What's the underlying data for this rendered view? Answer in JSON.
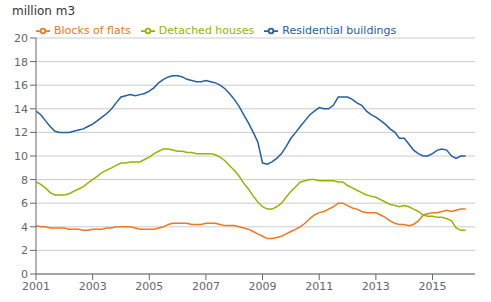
{
  "chart_data": {
    "type": "line",
    "title": "million m3",
    "x": [
      2001.0,
      2001.17,
      2001.33,
      2001.5,
      2001.67,
      2001.83,
      2002.0,
      2002.17,
      2002.33,
      2002.5,
      2002.67,
      2002.83,
      2003.0,
      2003.17,
      2003.33,
      2003.5,
      2003.67,
      2003.83,
      2004.0,
      2004.17,
      2004.33,
      2004.5,
      2004.67,
      2004.83,
      2005.0,
      2005.17,
      2005.33,
      2005.5,
      2005.67,
      2005.83,
      2006.0,
      2006.17,
      2006.33,
      2006.5,
      2006.67,
      2006.83,
      2007.0,
      2007.17,
      2007.33,
      2007.5,
      2007.67,
      2007.83,
      2008.0,
      2008.17,
      2008.33,
      2008.5,
      2008.67,
      2008.83,
      2009.0,
      2009.17,
      2009.33,
      2009.5,
      2009.67,
      2009.83,
      2010.0,
      2010.17,
      2010.33,
      2010.5,
      2010.67,
      2010.83,
      2011.0,
      2011.17,
      2011.33,
      2011.5,
      2011.67,
      2011.83,
      2012.0,
      2012.17,
      2012.33,
      2012.5,
      2012.67,
      2012.83,
      2013.0,
      2013.17,
      2013.33,
      2013.5,
      2013.67,
      2013.83,
      2014.0,
      2014.17,
      2014.33,
      2014.5,
      2014.67,
      2014.83,
      2015.0,
      2015.17,
      2015.33,
      2015.5,
      2015.67,
      2015.83,
      2016.0,
      2016.17
    ],
    "series": [
      {
        "name": "Residential buildings",
        "color": "#2060a8",
        "values": [
          13.8,
          13.5,
          13.0,
          12.5,
          12.1,
          12.0,
          12.0,
          12.0,
          12.1,
          12.2,
          12.3,
          12.5,
          12.7,
          13.0,
          13.3,
          13.6,
          14.0,
          14.5,
          15.0,
          15.1,
          15.2,
          15.1,
          15.2,
          15.3,
          15.5,
          15.8,
          16.2,
          16.5,
          16.7,
          16.8,
          16.8,
          16.7,
          16.5,
          16.4,
          16.3,
          16.3,
          16.4,
          16.3,
          16.2,
          16.0,
          15.7,
          15.3,
          14.8,
          14.2,
          13.5,
          12.8,
          12.0,
          11.2,
          9.4,
          9.3,
          9.5,
          9.8,
          10.2,
          10.8,
          11.5,
          12.0,
          12.5,
          13.0,
          13.5,
          13.8,
          14.1,
          14.0,
          14.0,
          14.3,
          15.0,
          15.0,
          15.0,
          14.8,
          14.5,
          14.3,
          13.8,
          13.5,
          13.3,
          13.0,
          12.7,
          12.3,
          12.0,
          11.5,
          11.5,
          11.0,
          10.5,
          10.2,
          10.0,
          10.0,
          10.2,
          10.5,
          10.6,
          10.5,
          10.0,
          9.8,
          10.0,
          10.0
        ]
      },
      {
        "name": "Blocks of flats",
        "color": "#f07820",
        "values": [
          4.1,
          4.0,
          4.0,
          3.9,
          3.9,
          3.9,
          3.9,
          3.8,
          3.8,
          3.8,
          3.7,
          3.7,
          3.8,
          3.8,
          3.8,
          3.9,
          3.9,
          4.0,
          4.0,
          4.0,
          4.0,
          3.9,
          3.8,
          3.8,
          3.8,
          3.8,
          3.9,
          4.0,
          4.2,
          4.3,
          4.3,
          4.3,
          4.3,
          4.2,
          4.2,
          4.2,
          4.3,
          4.3,
          4.3,
          4.2,
          4.1,
          4.1,
          4.1,
          4.0,
          3.9,
          3.8,
          3.6,
          3.4,
          3.2,
          3.0,
          3.0,
          3.1,
          3.2,
          3.4,
          3.6,
          3.8,
          4.0,
          4.3,
          4.7,
          5.0,
          5.2,
          5.3,
          5.5,
          5.7,
          6.0,
          6.0,
          5.8,
          5.6,
          5.5,
          5.3,
          5.2,
          5.2,
          5.2,
          5.0,
          4.8,
          4.5,
          4.3,
          4.2,
          4.2,
          4.1,
          4.2,
          4.5,
          5.0,
          5.1,
          5.2,
          5.2,
          5.3,
          5.4,
          5.3,
          5.4,
          5.5,
          5.5
        ]
      },
      {
        "name": "Detached houses",
        "color": "#96b400",
        "values": [
          7.8,
          7.6,
          7.3,
          6.9,
          6.7,
          6.7,
          6.7,
          6.8,
          7.0,
          7.2,
          7.4,
          7.7,
          8.0,
          8.3,
          8.6,
          8.8,
          9.0,
          9.2,
          9.4,
          9.4,
          9.5,
          9.5,
          9.5,
          9.7,
          9.9,
          10.2,
          10.4,
          10.6,
          10.6,
          10.5,
          10.4,
          10.4,
          10.3,
          10.3,
          10.2,
          10.2,
          10.2,
          10.2,
          10.1,
          9.9,
          9.6,
          9.2,
          8.8,
          8.3,
          7.7,
          7.2,
          6.6,
          6.1,
          5.7,
          5.5,
          5.5,
          5.7,
          6.0,
          6.5,
          7.0,
          7.4,
          7.8,
          7.9,
          8.0,
          8.0,
          7.9,
          7.9,
          7.9,
          7.9,
          7.8,
          7.8,
          7.5,
          7.3,
          7.1,
          6.9,
          6.7,
          6.6,
          6.5,
          6.3,
          6.1,
          5.9,
          5.8,
          5.7,
          5.8,
          5.7,
          5.5,
          5.3,
          5.0,
          4.9,
          4.9,
          4.8,
          4.8,
          4.7,
          4.5,
          3.9,
          3.7,
          3.7
        ]
      }
    ],
    "xlim": [
      2001,
      2016.5
    ],
    "xticks": [
      2001,
      2003,
      2005,
      2007,
      2009,
      2011,
      2013,
      2015
    ],
    "ylim": [
      0,
      20
    ],
    "yticks": [
      0,
      2,
      4,
      6,
      8,
      10,
      12,
      14,
      16,
      18,
      20
    ],
    "grid": true,
    "legend": "upper left"
  }
}
